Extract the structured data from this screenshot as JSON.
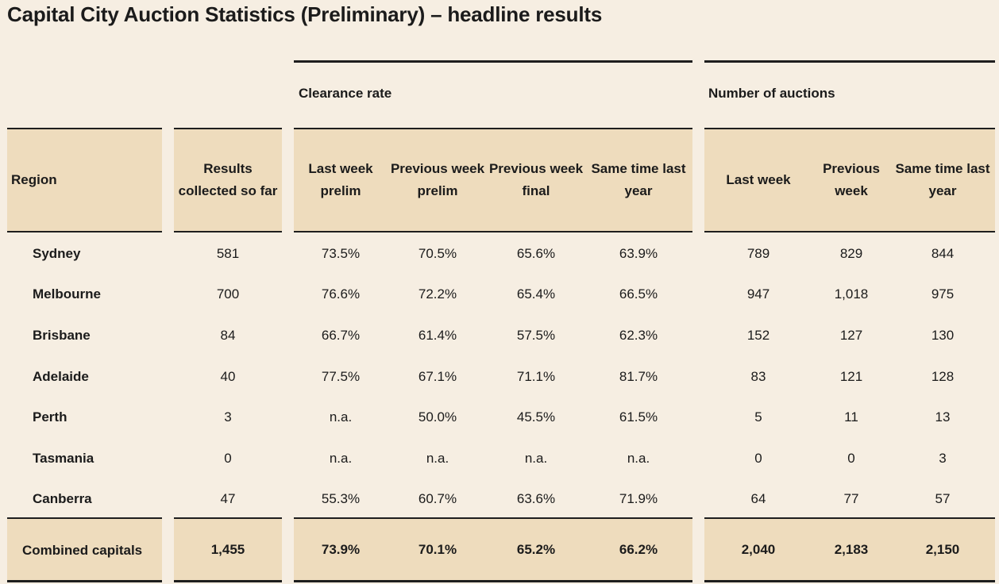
{
  "title": "Capital City Auction Statistics (Preliminary) – headline results",
  "groups": {
    "clearance_rate": "Clearance rate",
    "number_of_auctions": "Number of auctions"
  },
  "columns": {
    "region": "Region",
    "results": "Results collected so far",
    "cr_last_week_prelim": "Last week prelim",
    "cr_prev_week_prelim": "Previous week prelim",
    "cr_prev_week_final": "Previous week final",
    "cr_same_time_last_year": "Same time last year",
    "na_last_week": "Last week",
    "na_prev_week": "Previous week",
    "na_same_time_last_year": "Same time last year"
  },
  "rows": [
    {
      "region": "Sydney",
      "results": "581",
      "cr_last": "73.5%",
      "cr_prev_prelim": "70.5%",
      "cr_prev_final": "65.6%",
      "cr_last_year": "63.9%",
      "na_last": "789",
      "na_prev": "829",
      "na_last_year": "844"
    },
    {
      "region": "Melbourne",
      "results": "700",
      "cr_last": "76.6%",
      "cr_prev_prelim": "72.2%",
      "cr_prev_final": "65.4%",
      "cr_last_year": "66.5%",
      "na_last": "947",
      "na_prev": "1,018",
      "na_last_year": "975"
    },
    {
      "region": "Brisbane",
      "results": "84",
      "cr_last": "66.7%",
      "cr_prev_prelim": "61.4%",
      "cr_prev_final": "57.5%",
      "cr_last_year": "62.3%",
      "na_last": "152",
      "na_prev": "127",
      "na_last_year": "130"
    },
    {
      "region": "Adelaide",
      "results": "40",
      "cr_last": "77.5%",
      "cr_prev_prelim": "67.1%",
      "cr_prev_final": "71.1%",
      "cr_last_year": "81.7%",
      "na_last": "83",
      "na_prev": "121",
      "na_last_year": "128"
    },
    {
      "region": "Perth",
      "results": "3",
      "cr_last": "n.a.",
      "cr_prev_prelim": "50.0%",
      "cr_prev_final": "45.5%",
      "cr_last_year": "61.5%",
      "na_last": "5",
      "na_prev": "11",
      "na_last_year": "13"
    },
    {
      "region": "Tasmania",
      "results": "0",
      "cr_last": "n.a.",
      "cr_prev_prelim": "n.a.",
      "cr_prev_final": "n.a.",
      "cr_last_year": "n.a.",
      "na_last": "0",
      "na_prev": "0",
      "na_last_year": "3"
    },
    {
      "region": "Canberra",
      "results": "47",
      "cr_last": "55.3%",
      "cr_prev_prelim": "60.7%",
      "cr_prev_final": "63.6%",
      "cr_last_year": "71.9%",
      "na_last": "64",
      "na_prev": "77",
      "na_last_year": "57"
    }
  ],
  "total": {
    "region": "Combined capitals",
    "results": "1,455",
    "cr_last": "73.9%",
    "cr_prev_prelim": "70.1%",
    "cr_prev_final": "65.2%",
    "cr_last_year": "66.2%",
    "na_last": "2,040",
    "na_prev": "2,183",
    "na_last_year": "2,150"
  }
}
